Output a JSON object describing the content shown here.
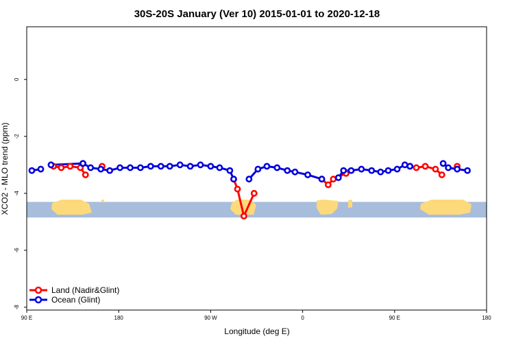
{
  "chart_data": {
    "type": "line",
    "title": "30S-20S January (Ver 10)   2015-01-01 to 2020-12-18",
    "xlabel": "Longitude (deg E)",
    "ylabel": "XCO2 - MLO trend (ppm)",
    "xlim": [
      90,
      450
    ],
    "ylim": [
      -8.1,
      1.85
    ],
    "x_ticks": [
      {
        "value": 90,
        "label": "90 E"
      },
      {
        "value": 162,
        "label": "180"
      },
      {
        "value": 234,
        "label": "90 W"
      },
      {
        "value": 306,
        "label": "0"
      },
      {
        "value": 378,
        "label": "90 E"
      },
      {
        "value": 450,
        "label": "180"
      }
    ],
    "y_ticks": [
      {
        "value": 0,
        "label": "0"
      },
      {
        "value": -2,
        "label": "-2"
      },
      {
        "value": -4,
        "label": "-4"
      },
      {
        "value": -6,
        "label": "-6"
      },
      {
        "value": -8,
        "label": "-8"
      }
    ],
    "legend_position": "bottom-left",
    "grid": false,
    "map_band": {
      "y_top": -4.3,
      "y_bottom": -4.85,
      "ocean_color": "#a8bddc",
      "land_color": "#fcd97a"
    },
    "series": [
      {
        "name": "Land (Nadir&Glint)",
        "color": "#ff0000",
        "segments": [
          [
            [
              111,
              -3.05
            ],
            [
              117,
              -3.1
            ],
            [
              124,
              -3.05
            ],
            [
              132,
              -3.1
            ],
            [
              136,
              -3.35
            ]
          ],
          [
            [
              149,
              -3.05
            ]
          ],
          [
            [
              252,
              -3.5
            ],
            [
              255,
              -3.85
            ],
            [
              260,
              -4.8
            ],
            [
              268,
              -4.0
            ]
          ],
          [
            [
              321,
              -3.5
            ],
            [
              326,
              -3.7
            ],
            [
              330,
              -3.5
            ],
            [
              340,
              -3.3
            ]
          ],
          [
            [
              390,
              -3.05
            ],
            [
              395,
              -3.1
            ],
            [
              402,
              -3.05
            ],
            [
              410,
              -3.15
            ],
            [
              415,
              -3.35
            ]
          ],
          [
            [
              427,
              -3.05
            ]
          ]
        ]
      },
      {
        "name": "Ocean (Glint)",
        "color": "#0000dd",
        "segments": [
          [
            [
              94,
              -3.2
            ],
            [
              101,
              -3.15
            ]
          ],
          [
            [
              109,
              -3.0
            ],
            [
              134,
              -2.95
            ]
          ],
          [
            [
              134,
              -2.95
            ],
            [
              140,
              -3.1
            ],
            [
              148,
              -3.15
            ],
            [
              155,
              -3.2
            ],
            [
              163,
              -3.1
            ],
            [
              171,
              -3.1
            ],
            [
              179,
              -3.1
            ],
            [
              187,
              -3.05
            ],
            [
              195,
              -3.05
            ],
            [
              202,
              -3.05
            ],
            [
              210,
              -3.0
            ],
            [
              218,
              -3.05
            ],
            [
              226,
              -3.0
            ],
            [
              234,
              -3.05
            ],
            [
              241,
              -3.1
            ],
            [
              249,
              -3.2
            ],
            [
              252,
              -3.5
            ]
          ],
          [
            [
              264,
              -3.5
            ],
            [
              271,
              -3.15
            ],
            [
              278,
              -3.05
            ],
            [
              286,
              -3.1
            ],
            [
              294,
              -3.2
            ],
            [
              300,
              -3.25
            ],
            [
              310,
              -3.35
            ],
            [
              321,
              -3.5
            ]
          ],
          [
            [
              334,
              -3.45
            ],
            [
              338,
              -3.2
            ],
            [
              344,
              -3.2
            ],
            [
              352,
              -3.15
            ],
            [
              360,
              -3.2
            ],
            [
              367,
              -3.25
            ],
            [
              373,
              -3.2
            ],
            [
              380,
              -3.15
            ],
            [
              386,
              -3.0
            ],
            [
              390,
              -3.05
            ]
          ],
          [
            [
              416,
              -2.95
            ],
            [
              420,
              -3.1
            ],
            [
              427,
              -3.15
            ],
            [
              435,
              -3.2
            ]
          ]
        ]
      }
    ]
  }
}
